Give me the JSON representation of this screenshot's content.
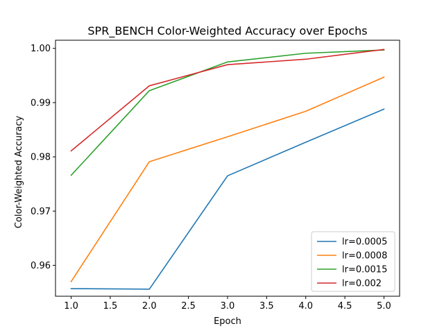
{
  "chart_data": {
    "type": "line",
    "title": "SPR_BENCH Color-Weighted Accuracy over Epochs",
    "xlabel": "Epoch",
    "ylabel": "Color-Weighted Accuracy",
    "xlim": [
      0.8,
      5.2
    ],
    "ylim": [
      0.9543,
      1.0015
    ],
    "x_ticks": [
      1.0,
      1.5,
      2.0,
      2.5,
      3.0,
      3.5,
      4.0,
      4.5,
      5.0
    ],
    "x_tick_labels": [
      "1.0",
      "1.5",
      "2.0",
      "2.5",
      "3.0",
      "3.5",
      "4.0",
      "4.5",
      "5.0"
    ],
    "y_ticks": [
      0.96,
      0.97,
      0.98,
      0.99,
      1.0
    ],
    "y_tick_labels": [
      "0.96",
      "0.97",
      "0.98",
      "0.99",
      "1.00"
    ],
    "grid": false,
    "legend_position": "lower-right",
    "x": [
      1,
      2,
      3,
      4,
      5
    ],
    "series": [
      {
        "name": "lr=0.0005",
        "color": "#1f77b4",
        "values": [
          0.9557,
          0.9556,
          0.9765,
          0.9827,
          0.9888
        ]
      },
      {
        "name": "lr=0.0008",
        "color": "#ff7f0e",
        "values": [
          0.957,
          0.9791,
          0.9837,
          0.9884,
          0.9947
        ]
      },
      {
        "name": "lr=0.0015",
        "color": "#2ca02c",
        "values": [
          0.9766,
          0.9922,
          0.9975,
          0.9991,
          0.9997
        ]
      },
      {
        "name": "lr=0.002",
        "color": "#d62728",
        "values": [
          0.9811,
          0.9931,
          0.997,
          0.998,
          0.9998
        ]
      }
    ]
  }
}
